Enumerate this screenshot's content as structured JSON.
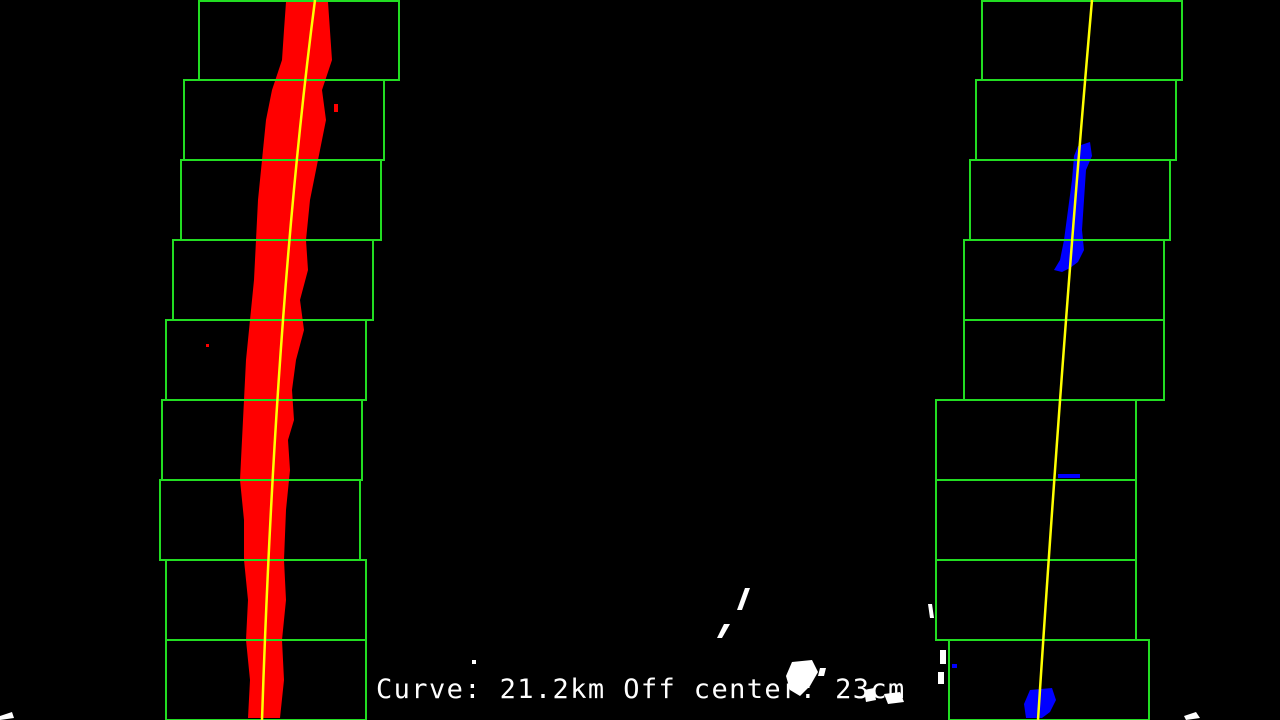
{
  "caption": {
    "curve_label": "Curve:",
    "curve_value": "21.2km",
    "offset_label": "Off center:",
    "offset_value": "23cm"
  },
  "colors": {
    "background": "#000000",
    "window_box": "#22dd22",
    "left_lane_pixels": "#ff0000",
    "right_lane_pixels": "#0000ff",
    "fit_line": "#ffff00",
    "noise": "#ffffff",
    "caption_text": "#ffffff"
  },
  "lanes": {
    "left": {
      "name": "left-lane",
      "window_count": 9
    },
    "right": {
      "name": "right-lane",
      "window_count": 9
    }
  }
}
